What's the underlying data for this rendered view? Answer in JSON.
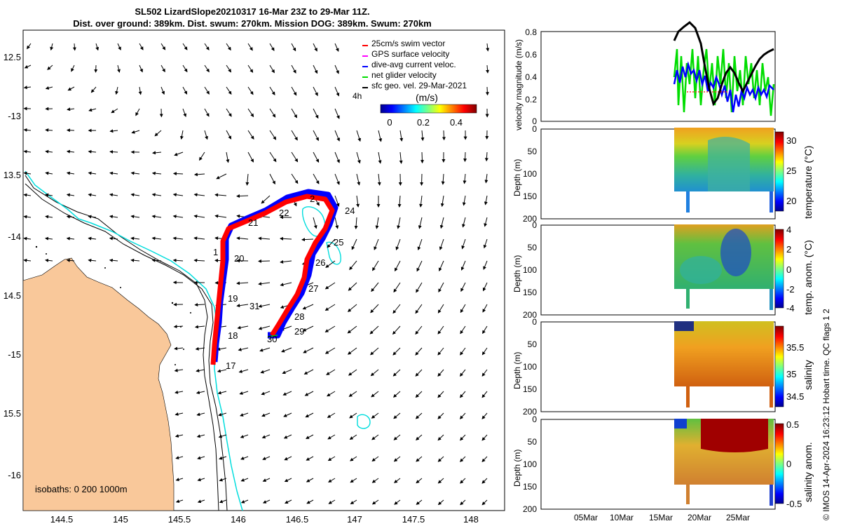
{
  "title": {
    "line1": "SL502 LizardSlope20210317 16-Mar 23Z to 29-Mar 11Z.",
    "line2": "Dist. over ground: 389km. Dist. swum: 270km. Mission DOG: 389km. Swum: 270km"
  },
  "map": {
    "lon_ticks": [
      "144.5",
      "145",
      "145.5",
      "146",
      "146.5",
      "147",
      "147.5",
      "148"
    ],
    "lat_ticks": [
      "12.5",
      "-13",
      "13.5",
      "-14",
      "14.5",
      "-15",
      "15.5",
      "-16"
    ],
    "legend": [
      {
        "label": "25cm/s swim vector",
        "color": "#ff0000"
      },
      {
        "label": "GPS surface velocity",
        "color": "#ff00ff"
      },
      {
        "label": "dive-avg current veloc.",
        "color": "#0000ff"
      },
      {
        "label": "net glider velocity",
        "color": "#00dd00"
      },
      {
        "label": "sfc geo. vel. 29-Mar-2021",
        "color": "#000000"
      }
    ],
    "legend_extra": "4h",
    "colorbar": {
      "label": "(m/s)",
      "ticks": [
        "0",
        "0.2",
        "0.4"
      ]
    },
    "isobaths_label": "isobaths: 0   200  1000m",
    "day_labels": [
      "17",
      "18",
      "19",
      "1",
      "20",
      "21",
      "22",
      "2",
      "24",
      "25",
      "26",
      "27",
      "28",
      "29",
      "30",
      "31"
    ],
    "colors": {
      "land": "#f9c89a",
      "track_red": "#ff0000",
      "track_blue": "#0000ff",
      "isobath_200": "#00dddd"
    }
  },
  "velocity_panel": {
    "ylabel": "velocity magnitude (m/s)",
    "yticks": [
      "0.8",
      "0.6",
      "0.4",
      "0.2",
      "0"
    ]
  },
  "profile_panels": [
    {
      "ylabel": "Depth (m)",
      "yticks": [
        "0",
        "50",
        "100",
        "150",
        "200"
      ],
      "cbar_label": "temperature (°C)",
      "cbar_ticks": [
        "30",
        "25",
        "20"
      ]
    },
    {
      "ylabel": "Depth (m)",
      "yticks": [
        "0",
        "50",
        "100",
        "150",
        "200"
      ],
      "cbar_label": "temp. anom. (°C)",
      "cbar_ticks": [
        "4",
        "2",
        "0",
        "-2",
        "-4"
      ]
    },
    {
      "ylabel": "Depth (m)",
      "yticks": [
        "0",
        "50",
        "100",
        "150",
        "200"
      ],
      "cbar_label": "salinity",
      "cbar_ticks": [
        "35.5",
        "35",
        "34.5"
      ]
    },
    {
      "ylabel": "Depth (m)",
      "yticks": [
        "0",
        "50",
        "100",
        "150",
        "200"
      ],
      "cbar_label": "salinity anom.",
      "cbar_ticks": [
        "0.5",
        "0",
        "-0.5"
      ]
    }
  ],
  "date_ticks": [
    "05Mar",
    "10Mar",
    "15Mar",
    "20Mar",
    "25Mar"
  ],
  "side_note": "© IMOS 14-Apr-2024 16:23:12 Hobart time. QC flags 1  2"
}
